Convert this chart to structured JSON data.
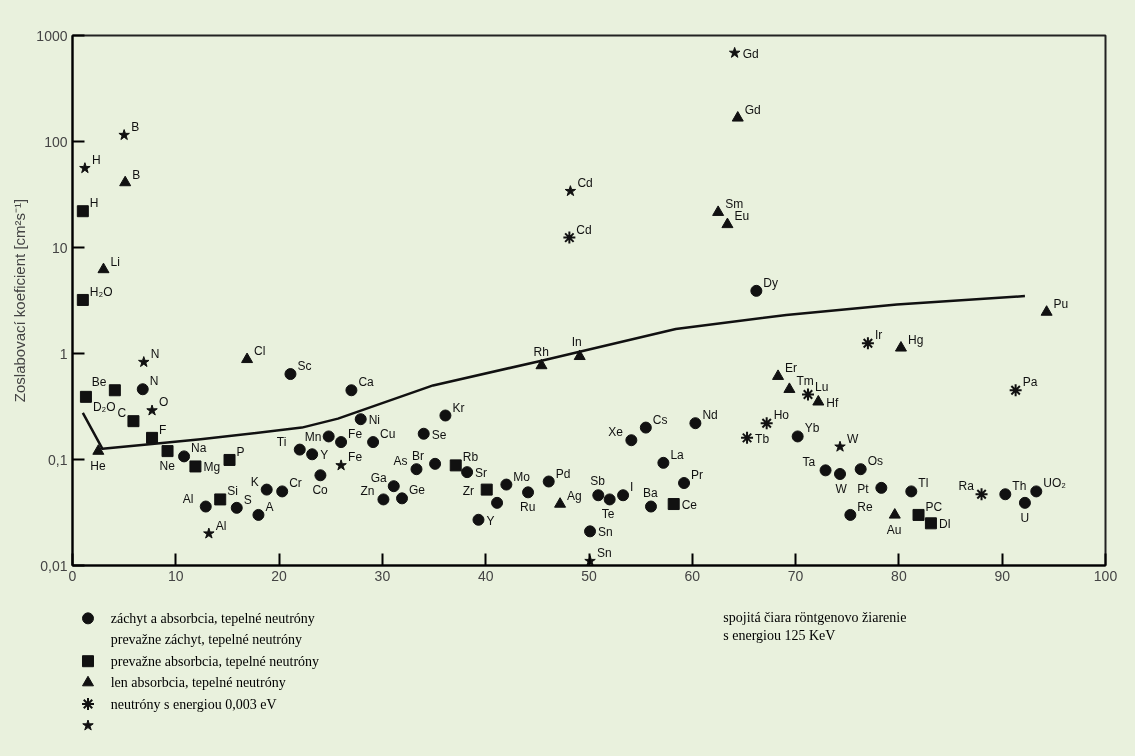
{
  "chart_data": {
    "type": "scatter",
    "ylabel": "Zoslabovací koeficient [cm²s⁻¹]",
    "log": "y",
    "xlim": [
      0,
      100
    ],
    "ylim": [
      0.01,
      1000
    ],
    "xticks": [
      0,
      10,
      20,
      30,
      40,
      50,
      60,
      70,
      80,
      90,
      100
    ],
    "yticks": [
      {
        "value": 0.01,
        "label": "0,01"
      },
      {
        "value": 0.1,
        "label": "0,1"
      },
      1,
      10,
      100,
      1000
    ],
    "legend": "bottom left",
    "series": [
      {
        "name": "záchyt a absorbcia, tepelné neutróny",
        "marker": "circle",
        "color": "#111111",
        "x": [
          6.8,
          10.8,
          12.9,
          15.9,
          18.0,
          18.8,
          20.3,
          21.1,
          27.0,
          22.0,
          23.2,
          24.0,
          24.8,
          26.0,
          27.9,
          29.1,
          31.1,
          30.1,
          31.9,
          34.0,
          33.3,
          36.1,
          35.1,
          38.2,
          39.3,
          41.1,
          42.0,
          44.1,
          46.1,
          50.9,
          52.0,
          53.3,
          50.1,
          54.1,
          55.5,
          57.2,
          56.0,
          59.2,
          60.3,
          66.2,
          70.2,
          72.9,
          74.3,
          76.3,
          78.3,
          81.2,
          75.3,
          90.3,
          92.2,
          93.3
        ],
        "values": [
          0.46,
          0.107,
          0.036,
          0.035,
          0.03,
          0.052,
          0.05,
          0.64,
          0.45,
          0.124,
          0.112,
          0.071,
          0.165,
          0.146,
          0.24,
          0.146,
          0.056,
          0.042,
          0.043,
          0.175,
          0.081,
          0.26,
          0.091,
          0.076,
          0.027,
          0.039,
          0.058,
          0.049,
          0.062,
          0.046,
          0.042,
          0.046,
          0.021,
          0.152,
          0.2,
          0.093,
          0.036,
          0.06,
          0.22,
          3.9,
          0.165,
          0.079,
          0.073,
          0.081,
          0.054,
          0.05,
          0.03,
          0.047,
          0.039,
          0.05
        ]
      },
      {
        "name": "prevažne absorbcia, tepelné neutróny",
        "marker": "square",
        "color": "#111111",
        "x": [
          1.0,
          1.0,
          1.3,
          4.1,
          5.9,
          7.7,
          9.2,
          11.9,
          15.2,
          14.3,
          37.1,
          40.1,
          58.2,
          81.9,
          83.1
        ],
        "values": [
          22,
          3.2,
          0.39,
          0.45,
          0.23,
          0.16,
          0.12,
          0.086,
          0.099,
          0.042,
          0.088,
          0.052,
          0.038,
          0.03,
          0.025
        ]
      },
      {
        "name": "len absorbcia, tepelné neutróny",
        "marker": "triangle",
        "color": "#111111",
        "x": [
          5.1,
          3.0,
          2.5,
          16.9,
          45.4,
          49.1,
          47.2,
          64.4,
          62.5,
          63.4,
          68.3,
          69.4,
          72.2,
          79.6,
          80.2,
          94.3
        ],
        "values": [
          41,
          6.2,
          0.12,
          0.88,
          0.77,
          0.94,
          0.038,
          167,
          21.5,
          16.5,
          0.61,
          0.46,
          0.35,
          0.03,
          1.13,
          2.46
        ]
      },
      {
        "name": "neutróny s energiou 0,003 eV",
        "marker": "cross",
        "color": "#111111",
        "x": [
          48.1,
          65.3,
          67.2,
          71.2,
          77.0,
          88.0,
          91.3
        ],
        "values": [
          12.4,
          0.16,
          0.22,
          0.41,
          1.25,
          0.047,
          0.45
        ]
      },
      {
        "marker": "star",
        "color": "#111111",
        "x": [
          5.0,
          1.2,
          6.9,
          7.7,
          13.2,
          26.0,
          50.1,
          64.1,
          48.2,
          74.3
        ],
        "values": [
          115,
          56,
          0.83,
          0.29,
          0.02,
          0.088,
          0.011,
          685,
          34,
          0.132
        ]
      },
      {
        "type": "line",
        "marker": "none",
        "line_style": "solid",
        "color": "#111111",
        "x": [
          1.0,
          2.9,
          6.7,
          12.4,
          22.2,
          25.7,
          34.9,
          45.3,
          58.4,
          69.1,
          79.8,
          92.2
        ],
        "values": [
          0.275,
          0.126,
          0.137,
          0.155,
          0.2,
          0.243,
          0.5,
          0.85,
          1.7,
          2.31,
          2.9,
          3.48
        ]
      }
    ],
    "annotations": [
      "prevažne záchyt, tepelné neutróny",
      "spojitá čiara röntgenovo žiarenie\ns energiou 125 KeV",
      {
        "text": "H",
        "x": 1.2,
        "y": 56
      },
      {
        "text": "B",
        "x": 5.0,
        "y": 115
      },
      {
        "text": "B",
        "x": 5.1,
        "y": 41
      },
      {
        "text": "H",
        "x": 1.0,
        "y": 22
      },
      {
        "text": "Li",
        "x": 3.0,
        "y": 6.2
      },
      {
        "text": "H₂O",
        "x": 1.0,
        "y": 3.2
      },
      {
        "text": "D₂O",
        "x": 1.3,
        "y": 0.39
      },
      {
        "text": "Be",
        "x": 4.1,
        "y": 0.45
      },
      {
        "text": "N",
        "x": 6.9,
        "y": 0.83
      },
      {
        "text": "N",
        "x": 6.8,
        "y": 0.46
      },
      {
        "text": "O",
        "x": 7.7,
        "y": 0.29
      },
      {
        "text": "C",
        "x": 5.9,
        "y": 0.23
      },
      {
        "text": "F",
        "x": 7.7,
        "y": 0.16
      },
      {
        "text": "Ne",
        "x": 9.2,
        "y": 0.12
      },
      {
        "text": "Na",
        "x": 10.8,
        "y": 0.107
      },
      {
        "text": "Mg",
        "x": 11.9,
        "y": 0.086
      },
      {
        "text": "P",
        "x": 15.2,
        "y": 0.099
      },
      {
        "text": "Si",
        "x": 14.3,
        "y": 0.042
      },
      {
        "text": "Al",
        "x": 12.9,
        "y": 0.036
      },
      {
        "text": "S",
        "x": 15.9,
        "y": 0.035
      },
      {
        "text": "A",
        "x": 18.0,
        "y": 0.03
      },
      {
        "text": "K",
        "x": 18.8,
        "y": 0.052
      },
      {
        "text": "Cr",
        "x": 20.3,
        "y": 0.05
      },
      {
        "text": "Al",
        "x": 13.2,
        "y": 0.02
      },
      {
        "text": "He",
        "x": 2.5,
        "y": 0.12
      },
      {
        "text": "Cl",
        "x": 16.9,
        "y": 0.88
      },
      {
        "text": "Sc",
        "x": 21.1,
        "y": 0.64
      },
      {
        "text": "Ca",
        "x": 27.0,
        "y": 0.45
      },
      {
        "text": "Ti",
        "x": 22.0,
        "y": 0.124
      },
      {
        "text": "Y",
        "x": 23.2,
        "y": 0.112
      },
      {
        "text": "Co",
        "x": 24.0,
        "y": 0.071
      },
      {
        "text": "Mn",
        "x": 24.8,
        "y": 0.165
      },
      {
        "text": "Fe",
        "x": 26.0,
        "y": 0.146
      },
      {
        "text": "Fe",
        "x": 26.0,
        "y": 0.088
      },
      {
        "text": "Ni",
        "x": 27.9,
        "y": 0.24
      },
      {
        "text": "Cu",
        "x": 29.1,
        "y": 0.146
      },
      {
        "text": "Ga",
        "x": 31.1,
        "y": 0.056
      },
      {
        "text": "Zn",
        "x": 30.1,
        "y": 0.042
      },
      {
        "text": "Ge",
        "x": 31.9,
        "y": 0.043
      },
      {
        "text": "Se",
        "x": 34.0,
        "y": 0.175
      },
      {
        "text": "As",
        "x": 33.3,
        "y": 0.081
      },
      {
        "text": "Kr",
        "x": 36.1,
        "y": 0.26
      },
      {
        "text": "Br",
        "x": 35.1,
        "y": 0.091
      },
      {
        "text": "Rb",
        "x": 37.1,
        "y": 0.088
      },
      {
        "text": "Sr",
        "x": 38.2,
        "y": 0.076
      },
      {
        "text": "Zr",
        "x": 40.1,
        "y": 0.052
      },
      {
        "text": "Y",
        "x": 39.3,
        "y": 0.027
      },
      {
        "text": "Mo",
        "x": 42.0,
        "y": 0.058
      },
      {
        "text": "Ru",
        "x": 44.1,
        "y": 0.049
      },
      {
        "text": "Pd",
        "x": 46.1,
        "y": 0.062
      },
      {
        "text": "Ag",
        "x": 47.2,
        "y": 0.038
      },
      {
        "text": "Rh",
        "x": 45.4,
        "y": 0.77
      },
      {
        "text": "In",
        "x": 49.1,
        "y": 0.94
      },
      {
        "text": "Sb",
        "x": 50.9,
        "y": 0.046
      },
      {
        "text": "Te",
        "x": 52.0,
        "y": 0.042
      },
      {
        "text": "I",
        "x": 53.3,
        "y": 0.046
      },
      {
        "text": "Sn",
        "x": 50.1,
        "y": 0.021
      },
      {
        "text": "Sn",
        "x": 50.1,
        "y": 0.011
      },
      {
        "text": "Xe",
        "x": 54.1,
        "y": 0.152
      },
      {
        "text": "Cs",
        "x": 55.5,
        "y": 0.2
      },
      {
        "text": "La",
        "x": 57.2,
        "y": 0.093
      },
      {
        "text": "Ba",
        "x": 56.0,
        "y": 0.036
      },
      {
        "text": "Ce",
        "x": 58.2,
        "y": 0.038
      },
      {
        "text": "Pr",
        "x": 59.2,
        "y": 0.06
      },
      {
        "text": "Nd",
        "x": 60.3,
        "y": 0.22
      },
      {
        "text": "Tb",
        "x": 65.3,
        "y": 0.16
      },
      {
        "text": "Ho",
        "x": 67.2,
        "y": 0.22
      },
      {
        "text": "Dy",
        "x": 66.2,
        "y": 3.9
      },
      {
        "text": "Gd",
        "x": 64.1,
        "y": 685
      },
      {
        "text": "Gd",
        "x": 64.4,
        "y": 167
      },
      {
        "text": "Cd",
        "x": 48.2,
        "y": 34
      },
      {
        "text": "Cd",
        "x": 48.1,
        "y": 12.4
      },
      {
        "text": "Sm",
        "x": 62.5,
        "y": 21.5
      },
      {
        "text": "Eu",
        "x": 63.4,
        "y": 16.5
      },
      {
        "text": "Er",
        "x": 68.3,
        "y": 0.61
      },
      {
        "text": "Tm",
        "x": 69.4,
        "y": 0.46
      },
      {
        "text": "Lu",
        "x": 71.2,
        "y": 0.41
      },
      {
        "text": "Hf",
        "x": 72.2,
        "y": 0.35
      },
      {
        "text": "Yb",
        "x": 70.2,
        "y": 0.165
      },
      {
        "text": "W",
        "x": 74.3,
        "y": 0.132
      },
      {
        "text": "Ta",
        "x": 72.9,
        "y": 0.079
      },
      {
        "text": "W",
        "x": 74.3,
        "y": 0.073
      },
      {
        "text": "Os",
        "x": 76.3,
        "y": 0.081
      },
      {
        "text": "Pt",
        "x": 78.3,
        "y": 0.054
      },
      {
        "text": "Tl",
        "x": 81.2,
        "y": 0.05
      },
      {
        "text": "Re",
        "x": 75.3,
        "y": 0.03
      },
      {
        "text": "Au",
        "x": 79.6,
        "y": 0.03
      },
      {
        "text": "PC",
        "x": 81.9,
        "y": 0.03
      },
      {
        "text": "DI",
        "x": 83.1,
        "y": 0.025
      },
      {
        "text": "Ra",
        "x": 88.0,
        "y": 0.047
      },
      {
        "text": "Th",
        "x": 90.3,
        "y": 0.047
      },
      {
        "text": "U",
        "x": 92.2,
        "y": 0.039
      },
      {
        "text": "UO₂",
        "x": 93.3,
        "y": 0.05
      },
      {
        "text": "Ir",
        "x": 77.0,
        "y": 1.25
      },
      {
        "text": "Hg",
        "x": 80.2,
        "y": 1.13
      },
      {
        "text": "Pu",
        "x": 94.3,
        "y": 2.46
      },
      {
        "text": "Pa",
        "x": 91.3,
        "y": 0.45
      }
    ]
  }
}
